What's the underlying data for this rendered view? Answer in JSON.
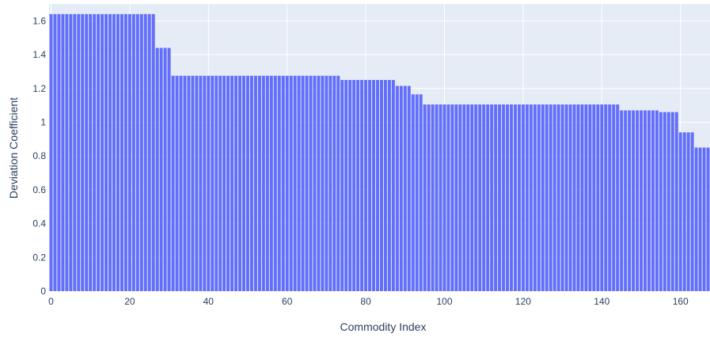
{
  "chart_data": {
    "type": "bar",
    "title": "",
    "xlabel": "Commodity Index",
    "ylabel": "Deviation Coefficient",
    "xlim": [
      -0.5,
      167.5
    ],
    "ylim": [
      0,
      1.7
    ],
    "x_ticks": [
      0,
      20,
      40,
      60,
      80,
      100,
      120,
      140,
      160
    ],
    "y_ticks": [
      0,
      0.2,
      0.4,
      0.6,
      0.8,
      1,
      1.2,
      1.4,
      1.6
    ],
    "y_tick_labels": [
      "0",
      "0.2",
      "0.4",
      "0.6",
      "0.8",
      "1",
      "1.2",
      "1.4",
      "1.6"
    ],
    "grid": true,
    "legend": "none",
    "colors": {
      "bar": "#636efa",
      "plot_bg": "#e5ecf6",
      "grid": "#ffffff"
    },
    "value_runs": [
      {
        "from": 0,
        "to": 26,
        "value": 1.64
      },
      {
        "from": 27,
        "to": 30,
        "value": 1.44
      },
      {
        "from": 31,
        "to": 73,
        "value": 1.275
      },
      {
        "from": 74,
        "to": 87,
        "value": 1.25
      },
      {
        "from": 88,
        "to": 91,
        "value": 1.215
      },
      {
        "from": 92,
        "to": 94,
        "value": 1.165
      },
      {
        "from": 95,
        "to": 144,
        "value": 1.105
      },
      {
        "from": 145,
        "to": 154,
        "value": 1.07
      },
      {
        "from": 155,
        "to": 159,
        "value": 1.06
      },
      {
        "from": 160,
        "to": 163,
        "value": 0.94
      },
      {
        "from": 164,
        "to": 167,
        "value": 0.85
      }
    ]
  }
}
